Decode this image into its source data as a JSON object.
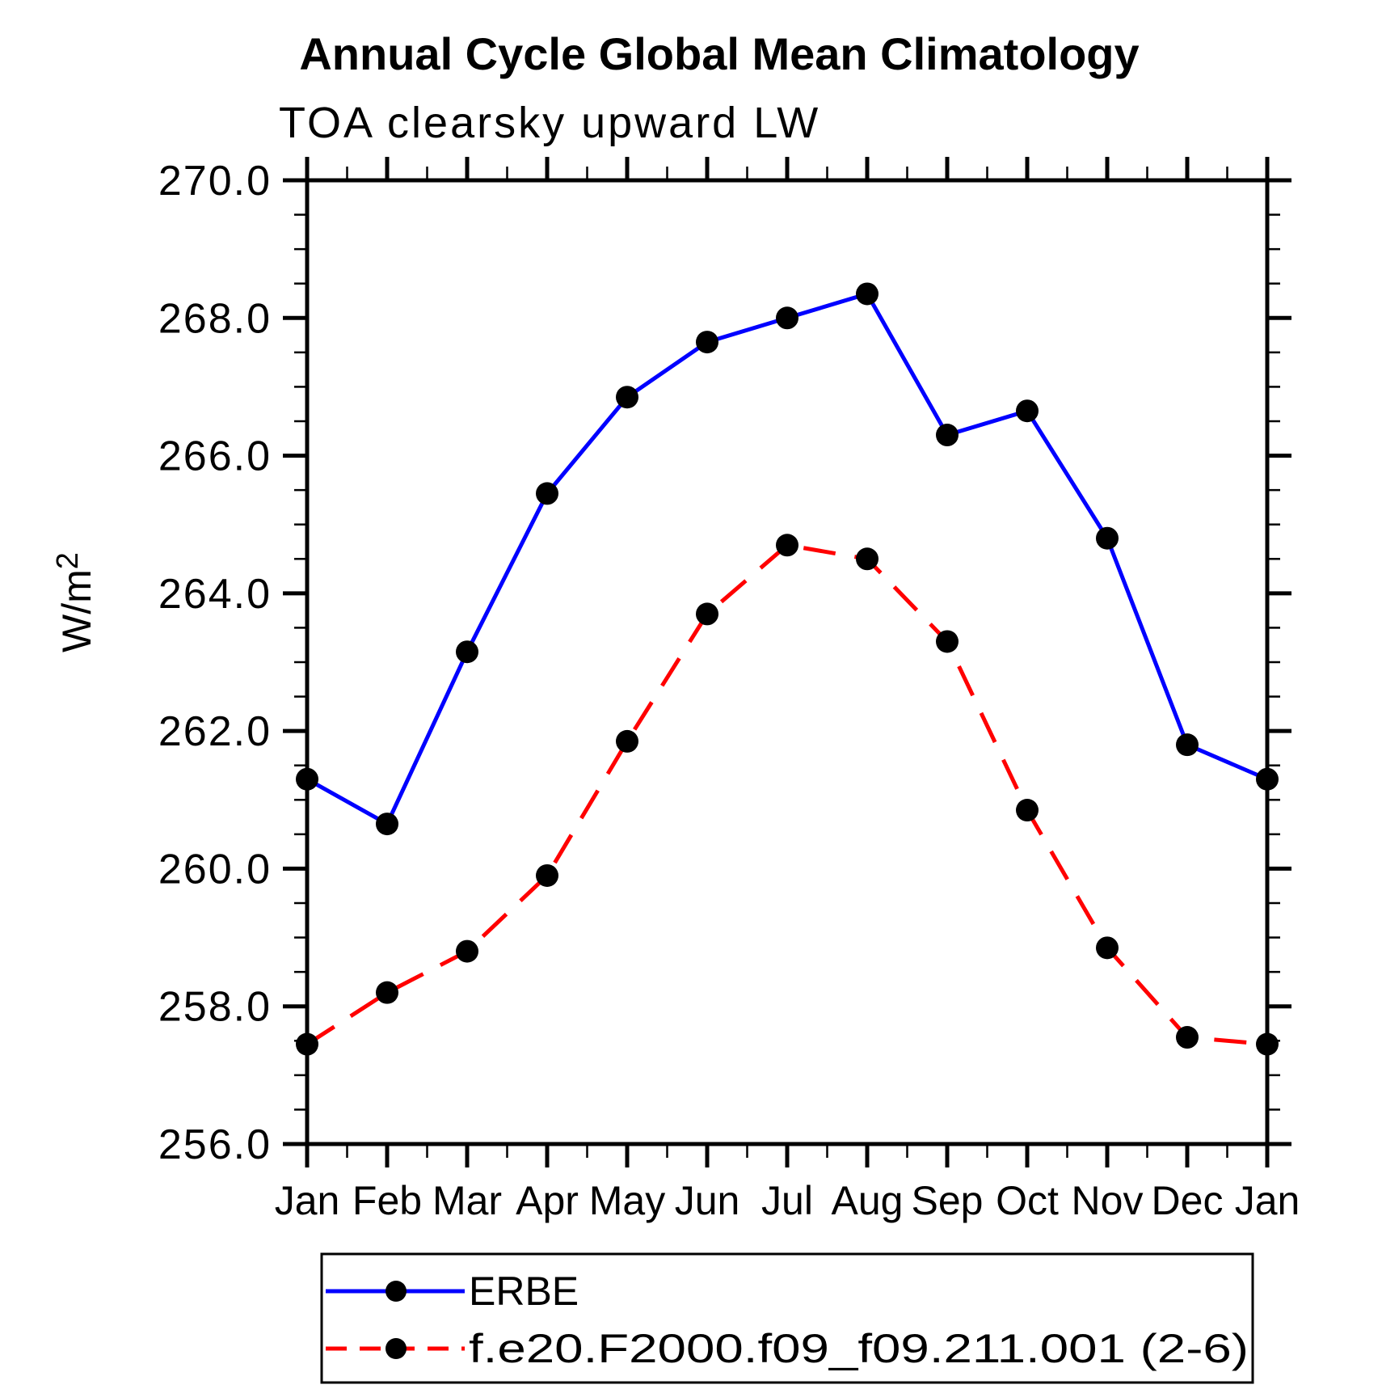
{
  "chart_data": {
    "type": "line",
    "title": "Annual Cycle Global Mean Climatology",
    "subtitle": "TOA clearsky upward LW",
    "ylabel": "W/m^2",
    "ylabel_base": "W/m",
    "ylabel_exponent": "2",
    "x_categories": [
      "Jan",
      "Feb",
      "Mar",
      "Apr",
      "May",
      "Jun",
      "Jul",
      "Aug",
      "Sep",
      "Oct",
      "Nov",
      "Dec",
      "Jan"
    ],
    "ylim": [
      256.0,
      270.0
    ],
    "ytick_step": 2.0,
    "yminor_step": 0.5,
    "ytick_labels": [
      "256.0",
      "258.0",
      "260.0",
      "262.0",
      "264.0",
      "266.0",
      "268.0",
      "270.0"
    ],
    "grid": false,
    "legend_position": "bottom",
    "frame_color": "#000000",
    "marker": {
      "shape": "circle",
      "color": "#000000"
    },
    "series": [
      {
        "name": "ERBE",
        "color": "#0000ff",
        "line_style": "solid",
        "values": [
          261.3,
          260.65,
          263.15,
          265.45,
          266.85,
          267.65,
          268.0,
          268.35,
          266.3,
          266.65,
          264.8,
          261.8,
          261.3
        ]
      },
      {
        "name": "f.e20.F2000.f09_f09.211.001 (2-6)",
        "color": "#ff0000",
        "line_style": "dashed",
        "values": [
          257.45,
          258.2,
          258.8,
          259.9,
          261.85,
          263.7,
          264.7,
          264.5,
          263.3,
          260.85,
          258.85,
          257.55,
          257.45
        ]
      }
    ]
  }
}
